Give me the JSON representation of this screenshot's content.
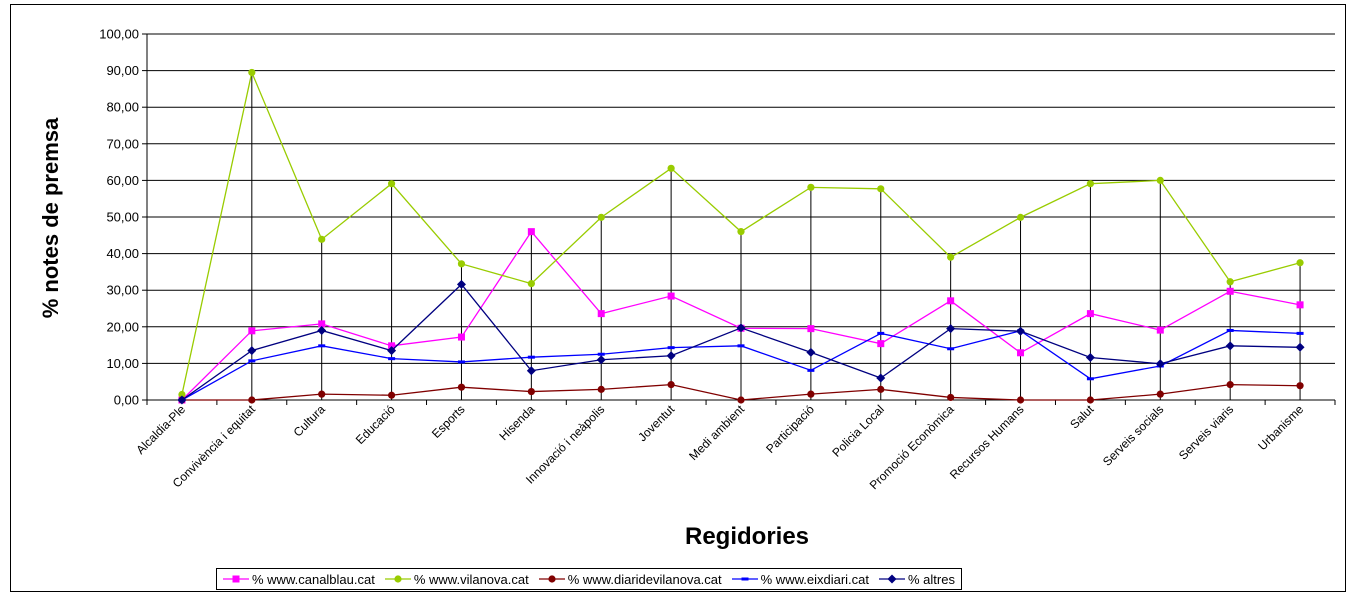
{
  "chart_data": {
    "type": "line",
    "title": "",
    "xlabel": "Regidories",
    "ylabel": "% notes de premsa",
    "ylim": [
      0,
      100
    ],
    "yticks": [
      "0,00",
      "10,00",
      "20,00",
      "30,00",
      "40,00",
      "50,00",
      "60,00",
      "70,00",
      "80,00",
      "90,00",
      "100,00"
    ],
    "grid": "horizontal",
    "drop_lines": true,
    "legend_position": "bottom",
    "categories": [
      "Alcaldia-Ple",
      "Convivència i equitat",
      "Cultura",
      "Educació",
      "Esports",
      "Hisenda",
      "Innovació i neàpolis",
      "Joventut",
      "Medi ambient",
      "Participació",
      "Policia Local",
      "Promoció Econòmica",
      "Recursos Humans",
      "Salut",
      "Serveis socials",
      "Serveis viaris",
      "Urbanisme"
    ],
    "series": [
      {
        "name": "% www.canalblau.cat",
        "color": "#ff00ff",
        "marker": "square",
        "values": [
          0.0,
          18.9,
          20.8,
          14.8,
          17.2,
          46.0,
          23.6,
          28.4,
          19.6,
          19.5,
          15.4,
          27.1,
          12.9,
          23.6,
          19.1,
          29.7,
          26.0
        ]
      },
      {
        "name": "% www.vilanova.cat",
        "color": "#99cc00",
        "marker": "circle",
        "values": [
          1.5,
          89.5,
          43.9,
          59.1,
          37.2,
          31.8,
          49.9,
          63.3,
          46.0,
          58.1,
          57.7,
          39.0,
          49.9,
          59.1,
          60.0,
          32.3,
          37.5
        ]
      },
      {
        "name": "% www.diaridevilanova.cat",
        "color": "#800000",
        "marker": "circle",
        "values": [
          0.0,
          0.0,
          1.6,
          1.3,
          3.5,
          2.3,
          2.9,
          4.2,
          0.0,
          1.6,
          2.9,
          0.7,
          0.0,
          0.0,
          1.6,
          4.2,
          3.9
        ]
      },
      {
        "name": "% www.eixdiari.cat",
        "color": "#0000ff",
        "marker": "dash",
        "values": [
          0.0,
          10.7,
          14.8,
          11.3,
          10.4,
          11.7,
          12.5,
          14.3,
          14.8,
          8.1,
          18.2,
          14.0,
          18.9,
          5.8,
          9.3,
          19.0,
          18.2
        ]
      },
      {
        "name": "% altres",
        "color": "#000080",
        "marker": "diamond",
        "values": [
          0.0,
          13.5,
          19.0,
          13.5,
          31.6,
          8.0,
          11.0,
          12.1,
          19.7,
          13.0,
          6.0,
          19.5,
          18.8,
          11.6,
          9.9,
          14.8,
          14.4
        ]
      }
    ]
  }
}
